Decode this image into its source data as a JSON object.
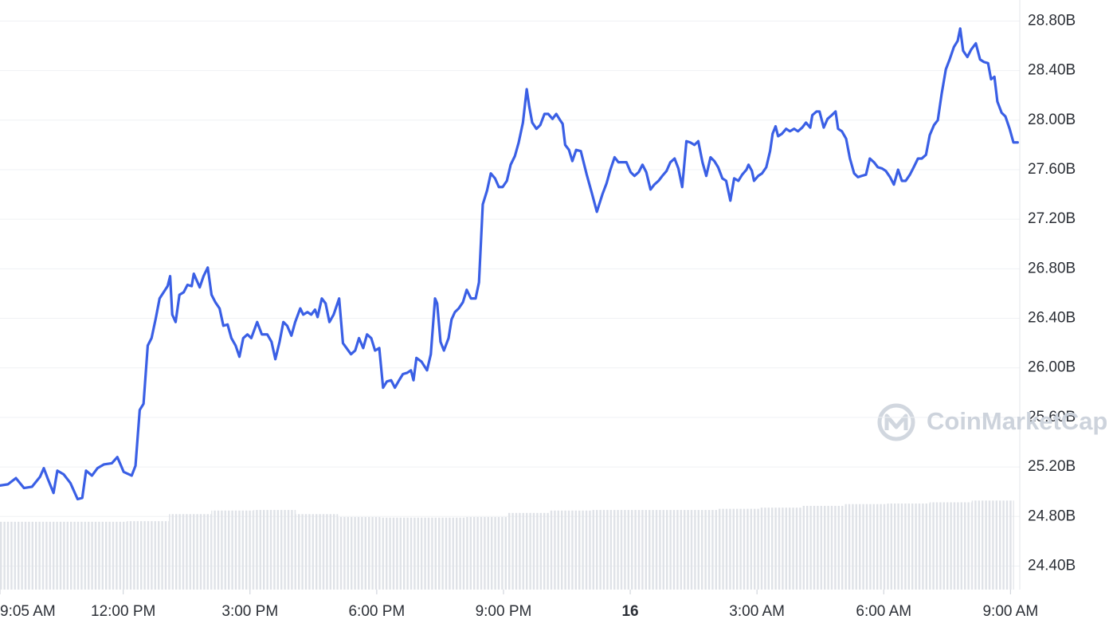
{
  "chart_data": {
    "type": "line",
    "watermark": "CoinMarketCap",
    "xlim": [
      9.083,
      33.22
    ],
    "ylim": [
      24.21,
      28.97
    ],
    "y2lim": [
      0,
      100
    ],
    "grid": true,
    "xticks": [
      {
        "value": 9.083,
        "label": "9:05 AM"
      },
      {
        "value": 12,
        "label": "12:00 PM"
      },
      {
        "value": 15,
        "label": "3:00 PM"
      },
      {
        "value": 18,
        "label": "6:00 PM"
      },
      {
        "value": 21,
        "label": "9:00 PM"
      },
      {
        "value": 24,
        "label": "16",
        "bold": true
      },
      {
        "value": 27,
        "label": "3:00 AM"
      },
      {
        "value": 30,
        "label": "6:00 AM"
      },
      {
        "value": 33,
        "label": "9:00 AM"
      }
    ],
    "yticks": [
      {
        "value": 24.4,
        "label": "24.40B"
      },
      {
        "value": 24.8,
        "label": "24.80B"
      },
      {
        "value": 25.2,
        "label": "25.20B"
      },
      {
        "value": 25.6,
        "label": "25.60B"
      },
      {
        "value": 26.0,
        "label": "26.00B"
      },
      {
        "value": 26.4,
        "label": "26.40B"
      },
      {
        "value": 26.8,
        "label": "26.80B"
      },
      {
        "value": 27.2,
        "label": "27.20B"
      },
      {
        "value": 27.6,
        "label": "27.60B"
      },
      {
        "value": 28.0,
        "label": "28.00B"
      },
      {
        "value": 28.4,
        "label": "28.40B"
      },
      {
        "value": 28.8,
        "label": "28.80B"
      }
    ],
    "x": [
      9.08,
      9.27,
      9.46,
      9.65,
      9.84,
      10.03,
      10.12,
      10.22,
      10.35,
      10.44,
      10.59,
      10.75,
      10.92,
      11.03,
      11.12,
      11.26,
      11.39,
      11.54,
      11.73,
      11.86,
      12.01,
      12.2,
      12.29,
      12.39,
      12.48,
      12.58,
      12.67,
      12.77,
      12.86,
      13.05,
      13.11,
      13.16,
      13.24,
      13.33,
      13.43,
      13.52,
      13.62,
      13.67,
      13.81,
      13.9,
      14.0,
      14.09,
      14.18,
      14.28,
      14.37,
      14.47,
      14.56,
      14.66,
      14.75,
      14.84,
      14.94,
      15.03,
      15.17,
      15.28,
      15.41,
      15.51,
      15.6,
      15.7,
      15.79,
      15.88,
      15.98,
      16.07,
      16.19,
      16.26,
      16.36,
      16.45,
      16.54,
      16.6,
      16.7,
      16.79,
      16.88,
      16.98,
      17.11,
      17.2,
      17.39,
      17.49,
      17.58,
      17.68,
      17.77,
      17.87,
      17.96,
      18.06,
      18.15,
      18.24,
      18.34,
      18.43,
      18.53,
      18.62,
      18.72,
      18.81,
      18.87,
      18.94,
      19.06,
      19.19,
      19.28,
      19.38,
      19.43,
      19.51,
      19.59,
      19.7,
      19.77,
      19.85,
      19.94,
      20.04,
      20.13,
      20.23,
      20.34,
      20.42,
      20.51,
      20.61,
      20.7,
      20.8,
      20.89,
      20.98,
      21.08,
      21.17,
      21.27,
      21.36,
      21.46,
      21.55,
      21.61,
      21.68,
      21.78,
      21.87,
      21.97,
      22.06,
      22.16,
      22.25,
      22.34,
      22.4,
      22.46,
      22.55,
      22.63,
      22.72,
      22.83,
      22.97,
      23.1,
      23.21,
      23.34,
      23.44,
      23.53,
      23.63,
      23.72,
      23.82,
      23.91,
      24.01,
      24.1,
      24.2,
      24.29,
      24.38,
      24.48,
      24.57,
      24.67,
      24.76,
      24.86,
      24.95,
      25.05,
      25.14,
      25.23,
      25.33,
      25.42,
      25.52,
      25.61,
      25.71,
      25.8,
      25.9,
      25.99,
      26.08,
      26.18,
      26.27,
      26.37,
      26.46,
      26.56,
      26.65,
      26.75,
      26.8,
      26.88,
      26.93,
      27.03,
      27.12,
      27.22,
      27.31,
      27.37,
      27.44,
      27.5,
      27.59,
      27.69,
      27.78,
      27.88,
      27.97,
      28.07,
      28.16,
      28.26,
      28.31,
      28.41,
      28.48,
      28.58,
      28.67,
      28.77,
      28.86,
      28.92,
      29.01,
      29.11,
      29.2,
      29.3,
      29.39,
      29.48,
      29.58,
      29.67,
      29.77,
      29.86,
      29.96,
      30.05,
      30.15,
      30.24,
      30.34,
      30.43,
      30.52,
      30.62,
      30.71,
      30.81,
      30.9,
      31.0,
      31.09,
      31.19,
      31.28,
      31.37,
      31.47,
      31.56,
      31.66,
      31.75,
      31.81,
      31.88,
      31.98,
      32.07,
      32.18,
      32.28,
      32.37,
      32.47,
      32.54,
      32.62,
      32.69,
      32.79,
      32.88,
      32.98,
      33.07,
      33.17
    ],
    "series": [
      {
        "color": "#3a5fe5",
        "values": [
          25.05,
          25.06,
          25.11,
          25.03,
          25.04,
          25.12,
          25.19,
          25.1,
          24.99,
          25.17,
          25.14,
          25.07,
          24.94,
          24.95,
          25.17,
          25.13,
          25.19,
          25.22,
          25.23,
          25.28,
          25.16,
          25.13,
          25.21,
          25.66,
          25.71,
          26.18,
          26.24,
          26.4,
          26.56,
          26.66,
          26.74,
          26.43,
          26.37,
          26.59,
          26.61,
          26.67,
          26.66,
          26.76,
          26.65,
          26.74,
          26.81,
          26.59,
          26.53,
          26.48,
          26.34,
          26.35,
          26.24,
          26.18,
          26.09,
          26.24,
          26.27,
          26.24,
          26.37,
          26.27,
          26.27,
          26.21,
          26.07,
          26.21,
          26.37,
          26.34,
          26.26,
          26.37,
          26.48,
          26.43,
          26.45,
          26.43,
          26.47,
          26.41,
          26.56,
          26.52,
          26.37,
          26.43,
          26.56,
          26.2,
          26.11,
          26.14,
          26.24,
          26.16,
          26.27,
          26.24,
          26.14,
          26.16,
          25.84,
          25.89,
          25.9,
          25.84,
          25.9,
          25.95,
          25.96,
          25.98,
          25.9,
          26.08,
          26.05,
          25.98,
          26.11,
          26.56,
          26.52,
          26.21,
          26.14,
          26.24,
          26.39,
          26.45,
          26.48,
          26.53,
          26.63,
          26.56,
          26.56,
          26.69,
          27.32,
          27.43,
          27.57,
          27.53,
          27.46,
          27.46,
          27.51,
          27.64,
          27.71,
          27.82,
          27.98,
          28.25,
          28.11,
          27.98,
          27.93,
          27.96,
          28.05,
          28.05,
          28.01,
          28.05,
          28.0,
          27.97,
          27.8,
          27.76,
          27.67,
          27.76,
          27.75,
          27.56,
          27.4,
          27.26,
          27.4,
          27.49,
          27.6,
          27.7,
          27.66,
          27.66,
          27.66,
          27.58,
          27.55,
          27.58,
          27.64,
          27.58,
          27.44,
          27.48,
          27.51,
          27.55,
          27.59,
          27.66,
          27.69,
          27.61,
          27.46,
          27.83,
          27.82,
          27.8,
          27.83,
          27.66,
          27.55,
          27.7,
          27.67,
          27.62,
          27.53,
          27.51,
          27.35,
          27.53,
          27.51,
          27.56,
          27.6,
          27.64,
          27.59,
          27.51,
          27.55,
          27.57,
          27.62,
          27.75,
          27.89,
          27.95,
          27.87,
          27.89,
          27.93,
          27.91,
          27.93,
          27.91,
          27.94,
          27.98,
          27.94,
          28.04,
          28.07,
          28.07,
          27.94,
          28.01,
          28.04,
          28.07,
          27.93,
          27.91,
          27.85,
          27.69,
          27.57,
          27.54,
          27.55,
          27.56,
          27.69,
          27.66,
          27.62,
          27.61,
          27.59,
          27.54,
          27.48,
          27.6,
          27.51,
          27.51,
          27.56,
          27.62,
          27.69,
          27.69,
          27.72,
          27.88,
          27.96,
          28.0,
          28.21,
          28.41,
          28.49,
          28.59,
          28.64,
          28.74,
          28.56,
          28.51,
          28.57,
          28.62,
          28.49,
          28.47,
          28.46,
          28.33,
          28.35,
          28.15,
          28.06,
          28.03,
          27.93,
          27.82,
          27.82
        ]
      },
      {
        "type": "bar",
        "axis": "y2",
        "color": "#dfe2e7",
        "x": [
          9.083,
          10.083,
          11.083,
          12.083,
          13.083,
          14.083,
          15.083,
          16.083,
          17.083,
          18.083,
          19.083,
          20.083,
          21.083,
          22.083,
          23.083,
          24.083,
          25.083,
          26.083,
          27.083,
          28.083,
          29.083,
          30.083,
          31.083,
          32.083
        ],
        "values": [
          11.5,
          11.5,
          11.5,
          11.6,
          12.8,
          13.4,
          13.5,
          12.8,
          12.3,
          12.2,
          12.2,
          12.3,
          13.0,
          13.4,
          13.5,
          13.5,
          13.5,
          13.7,
          13.9,
          14.2,
          14.5,
          14.6,
          14.8,
          15.1
        ]
      }
    ]
  }
}
